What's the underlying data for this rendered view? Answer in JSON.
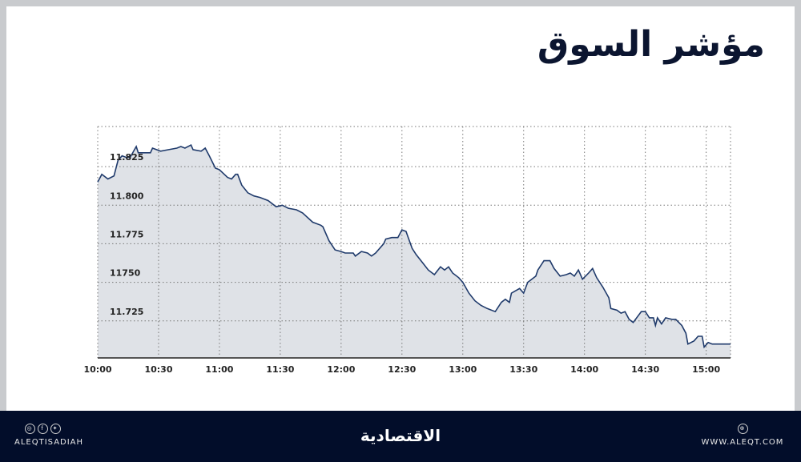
{
  "title": "مؤشر السوق",
  "footer": {
    "handle": "ALEQTISADIAH",
    "logo_text": "الاقتصادية",
    "website": "WWW.ALEQT.COM",
    "social_icons": [
      "instagram-icon",
      "facebook-icon",
      "twitter-icon"
    ],
    "web_icon": "globe-icon"
  },
  "colors": {
    "line": "#1f3a6b",
    "fill": "#dfe2e7",
    "footer": "#020d2a",
    "title": "#0b1530"
  },
  "chart_data": {
    "type": "area",
    "title": "",
    "xlabel": "",
    "ylabel": "",
    "x_ticks": [
      "10:00",
      "10:30",
      "11:00",
      "11:30",
      "12:00",
      "12:30",
      "13:00",
      "13:30",
      "14:00",
      "14:30",
      "15:00"
    ],
    "y_ticks": [
      {
        "value": 11825,
        "label": "11.825"
      },
      {
        "value": 11800,
        "label": "11.800"
      },
      {
        "value": 11775,
        "label": "11.775"
      },
      {
        "value": 11750,
        "label": "11750"
      },
      {
        "value": 11725,
        "label": "11.725"
      }
    ],
    "xlim": [
      "10:00",
      "15:12"
    ],
    "ylim": [
      11701,
      11851
    ],
    "grid": true,
    "points": [
      [
        "10:00",
        11815
      ],
      [
        "10:02",
        11820
      ],
      [
        "10:05",
        11817
      ],
      [
        "10:08",
        11819
      ],
      [
        "10:10",
        11829
      ],
      [
        "10:12",
        11832
      ],
      [
        "10:14",
        11831
      ],
      [
        "10:16",
        11831
      ],
      [
        "10:19",
        11838
      ],
      [
        "10:20",
        11834
      ],
      [
        "10:23",
        11834
      ],
      [
        "10:26",
        11834
      ],
      [
        "10:27",
        11837
      ],
      [
        "10:29",
        11836
      ],
      [
        "10:31",
        11835
      ],
      [
        "10:35",
        11836
      ],
      [
        "10:39",
        11837
      ],
      [
        "10:41",
        11838
      ],
      [
        "10:43",
        11837
      ],
      [
        "10:46",
        11839
      ],
      [
        "10:47",
        11836
      ],
      [
        "10:51",
        11835
      ],
      [
        "10:53",
        11837
      ],
      [
        "10:55",
        11832
      ],
      [
        "10:58",
        11824
      ],
      [
        "11:00",
        11823
      ],
      [
        "11:04",
        11818
      ],
      [
        "11:06",
        11817
      ],
      [
        "11:08",
        11820
      ],
      [
        "11:09",
        11820
      ],
      [
        "11:11",
        11813
      ],
      [
        "11:14",
        11808
      ],
      [
        "11:17",
        11806
      ],
      [
        "11:20",
        11805
      ],
      [
        "11:24",
        11803
      ],
      [
        "11:28",
        11799
      ],
      [
        "11:31",
        11800
      ],
      [
        "11:34",
        11798
      ],
      [
        "11:38",
        11797
      ],
      [
        "11:41",
        11795
      ],
      [
        "11:46",
        11789
      ],
      [
        "11:50",
        11787
      ],
      [
        "11:51",
        11786
      ],
      [
        "11:54",
        11777
      ],
      [
        "11:57",
        11771
      ],
      [
        "12:00",
        11770
      ],
      [
        "12:02",
        11769
      ],
      [
        "12:06",
        11769
      ],
      [
        "12:07",
        11767
      ],
      [
        "12:10",
        11770
      ],
      [
        "12:13",
        11769
      ],
      [
        "12:15",
        11767
      ],
      [
        "12:17",
        11769
      ],
      [
        "12:21",
        11775
      ],
      [
        "12:22",
        11778
      ],
      [
        "12:25",
        11779
      ],
      [
        "12:28",
        11779
      ],
      [
        "12:30",
        11784
      ],
      [
        "12:32",
        11783
      ],
      [
        "12:35",
        11772
      ],
      [
        "12:37",
        11768
      ],
      [
        "12:40",
        11763
      ],
      [
        "12:43",
        11758
      ],
      [
        "12:46",
        11755
      ],
      [
        "12:49",
        11760
      ],
      [
        "12:51",
        11758
      ],
      [
        "12:53",
        11760
      ],
      [
        "12:55",
        11756
      ],
      [
        "12:58",
        11753
      ],
      [
        "13:00",
        11750
      ],
      [
        "13:03",
        11743
      ],
      [
        "13:06",
        11738
      ],
      [
        "13:09",
        11735
      ],
      [
        "13:12",
        11733
      ],
      [
        "13:16",
        11731
      ],
      [
        "13:19",
        11737
      ],
      [
        "13:21",
        11739
      ],
      [
        "13:23",
        11737
      ],
      [
        "13:24",
        11743
      ],
      [
        "13:28",
        11746
      ],
      [
        "13:30",
        11743
      ],
      [
        "13:32",
        11750
      ],
      [
        "13:36",
        11754
      ],
      [
        "13:37",
        11758
      ],
      [
        "13:40",
        11764
      ],
      [
        "13:43",
        11764
      ],
      [
        "13:45",
        11759
      ],
      [
        "13:48",
        11754
      ],
      [
        "13:51",
        11755
      ],
      [
        "13:53",
        11756
      ],
      [
        "13:55",
        11754
      ],
      [
        "13:57",
        11758
      ],
      [
        "13:59",
        11752
      ],
      [
        "14:02",
        11756
      ],
      [
        "14:04",
        11759
      ],
      [
        "14:06",
        11753
      ],
      [
        "14:09",
        11747
      ],
      [
        "14:12",
        11740
      ],
      [
        "14:13",
        11733
      ],
      [
        "14:16",
        11732
      ],
      [
        "14:18",
        11730
      ],
      [
        "14:20",
        11731
      ],
      [
        "14:22",
        11726
      ],
      [
        "14:24",
        11724
      ],
      [
        "14:28",
        11731
      ],
      [
        "14:30",
        11731
      ],
      [
        "14:32",
        11727
      ],
      [
        "14:34",
        11727
      ],
      [
        "14:35",
        11722
      ],
      [
        "14:36",
        11727
      ],
      [
        "14:38",
        11723
      ],
      [
        "14:40",
        11727
      ],
      [
        "14:43",
        11726
      ],
      [
        "14:45",
        11726
      ],
      [
        "14:48",
        11722
      ],
      [
        "14:50",
        11717
      ],
      [
        "14:51",
        11710
      ],
      [
        "14:54",
        11712
      ],
      [
        "14:56",
        11715
      ],
      [
        "14:58",
        11715
      ],
      [
        "14:59",
        11708
      ],
      [
        "15:01",
        11711
      ],
      [
        "15:03",
        11710
      ],
      [
        "15:12",
        11710
      ]
    ]
  }
}
